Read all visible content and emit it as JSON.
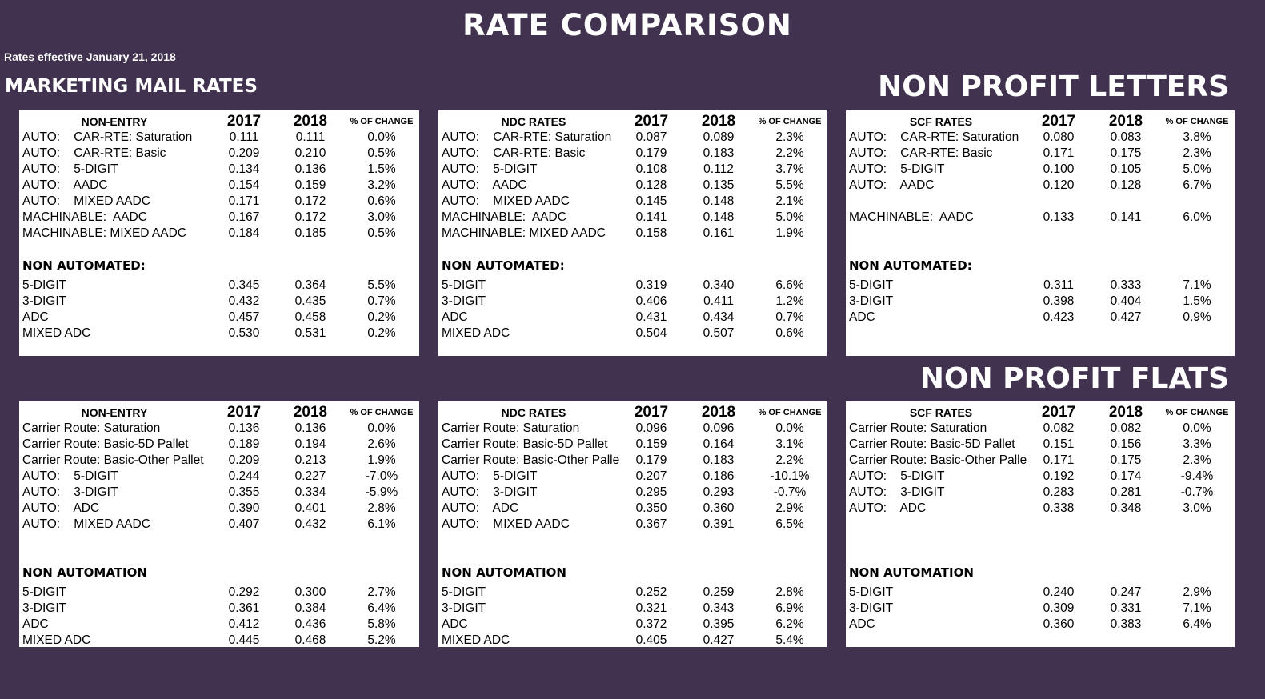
{
  "title": "RATE COMPARISON",
  "effective": "Rates effective January 21, 2018",
  "sections": {
    "marketing": "MARKETING MAIL RATES",
    "letters": "NON PROFIT LETTERS",
    "flats": "NON PROFIT FLATS"
  },
  "colors": {
    "background": "#41324f",
    "panel": "#ffffff",
    "heading": "#ffffff"
  },
  "columns": {
    "y2017": "2017",
    "y2018": "2018",
    "pct": "% OF CHANGE"
  },
  "tables": [
    {
      "heading": "NON-ENTRY",
      "rows": [
        {
          "label": "AUTO:    CAR-RTE: Saturation",
          "v17": "0.111",
          "v18": "0.111",
          "pct": "0.0%"
        },
        {
          "label": "AUTO:    CAR-RTE: Basic",
          "v17": "0.209",
          "v18": "0.210",
          "pct": "0.5%"
        },
        {
          "label": "AUTO:    5-DIGIT",
          "v17": "0.134",
          "v18": "0.136",
          "pct": "1.5%"
        },
        {
          "label": "AUTO:    AADC",
          "v17": "0.154",
          "v18": "0.159",
          "pct": "3.2%"
        },
        {
          "label": "AUTO:    MIXED AADC",
          "v17": "0.171",
          "v18": "0.172",
          "pct": "0.6%"
        },
        {
          "label": "MACHINABLE:  AADC",
          "v17": "0.167",
          "v18": "0.172",
          "pct": "3.0%"
        },
        {
          "label": "MACHINABLE: MIXED AADC",
          "v17": "0.184",
          "v18": "0.185",
          "pct": "0.5%"
        },
        {},
        {
          "section": "NON AUTOMATED:"
        },
        {
          "label": "5-DIGIT",
          "v17": "0.345",
          "v18": "0.364",
          "pct": "5.5%"
        },
        {
          "label": "3-DIGIT",
          "v17": "0.432",
          "v18": "0.435",
          "pct": "0.7%"
        },
        {
          "label": "ADC",
          "v17": "0.457",
          "v18": "0.458",
          "pct": "0.2%"
        },
        {
          "label": "MIXED ADC",
          "v17": "0.530",
          "v18": "0.531",
          "pct": "0.2%"
        }
      ]
    },
    {
      "heading": "NDC RATES",
      "rows": [
        {
          "label": "AUTO:    CAR-RTE: Saturation",
          "v17": "0.087",
          "v18": "0.089",
          "pct": "2.3%"
        },
        {
          "label": "AUTO:    CAR-RTE: Basic",
          "v17": "0.179",
          "v18": "0.183",
          "pct": "2.2%"
        },
        {
          "label": "AUTO:    5-DIGIT",
          "v17": "0.108",
          "v18": "0.112",
          "pct": "3.7%"
        },
        {
          "label": "AUTO:    AADC",
          "v17": "0.128",
          "v18": "0.135",
          "pct": "5.5%"
        },
        {
          "label": "AUTO:    MIXED AADC",
          "v17": "0.145",
          "v18": "0.148",
          "pct": "2.1%"
        },
        {
          "label": "MACHINABLE:  AADC",
          "v17": "0.141",
          "v18": "0.148",
          "pct": "5.0%"
        },
        {
          "label": "MACHINABLE: MIXED AADC",
          "v17": "0.158",
          "v18": "0.161",
          "pct": "1.9%"
        },
        {},
        {
          "section": "NON AUTOMATED:"
        },
        {
          "label": "5-DIGIT",
          "v17": "0.319",
          "v18": "0.340",
          "pct": "6.6%"
        },
        {
          "label": "3-DIGIT",
          "v17": "0.406",
          "v18": "0.411",
          "pct": "1.2%"
        },
        {
          "label": "ADC",
          "v17": "0.431",
          "v18": "0.434",
          "pct": "0.7%"
        },
        {
          "label": "MIXED ADC",
          "v17": "0.504",
          "v18": "0.507",
          "pct": "0.6%"
        }
      ]
    },
    {
      "heading": "SCF RATES",
      "rows": [
        {
          "label": "AUTO:    CAR-RTE: Saturation",
          "v17": "0.080",
          "v18": "0.083",
          "pct": "3.8%"
        },
        {
          "label": "AUTO:    CAR-RTE: Basic",
          "v17": "0.171",
          "v18": "0.175",
          "pct": "2.3%"
        },
        {
          "label": "AUTO:    5-DIGIT",
          "v17": "0.100",
          "v18": "0.105",
          "pct": "5.0%"
        },
        {
          "label": "AUTO:    AADC",
          "v17": "0.120",
          "v18": "0.128",
          "pct": "6.7%"
        },
        {},
        {
          "label": "MACHINABLE:  AADC",
          "v17": "0.133",
          "v18": "0.141",
          "pct": "6.0%"
        },
        {},
        {},
        {
          "section": "NON AUTOMATED:"
        },
        {
          "label": "5-DIGIT",
          "v17": "0.311",
          "v18": "0.333",
          "pct": "7.1%"
        },
        {
          "label": "3-DIGIT",
          "v17": "0.398",
          "v18": "0.404",
          "pct": "1.5%"
        },
        {
          "label": "ADC",
          "v17": "0.423",
          "v18": "0.427",
          "pct": "0.9%"
        }
      ]
    },
    {
      "heading": "NON-ENTRY",
      "rows": [
        {
          "label": "Carrier Route: Saturation",
          "v17": "0.136",
          "v18": "0.136",
          "pct": "0.0%"
        },
        {
          "label": "Carrier Route: Basic-5D Pallet",
          "v17": "0.189",
          "v18": "0.194",
          "pct": "2.6%"
        },
        {
          "label": "Carrier Route: Basic-Other Pallet",
          "v17": "0.209",
          "v18": "0.213",
          "pct": "1.9%"
        },
        {
          "label": "AUTO:    5-DIGIT",
          "v17": "0.244",
          "v18": "0.227",
          "pct": "-7.0%"
        },
        {
          "label": "AUTO:    3-DIGIT",
          "v17": "0.355",
          "v18": "0.334",
          "pct": "-5.9%"
        },
        {
          "label": "AUTO:    ADC",
          "v17": "0.390",
          "v18": "0.401",
          "pct": "2.8%"
        },
        {
          "label": "AUTO:    MIXED AADC",
          "v17": "0.407",
          "v18": "0.432",
          "pct": "6.1%"
        },
        {},
        {},
        {
          "section": "NON AUTOMATION"
        },
        {
          "label": "5-DIGIT",
          "v17": "0.292",
          "v18": "0.300",
          "pct": "2.7%"
        },
        {
          "label": "3-DIGIT",
          "v17": "0.361",
          "v18": "0.384",
          "pct": "6.4%"
        },
        {
          "label": "ADC",
          "v17": "0.412",
          "v18": "0.436",
          "pct": "5.8%"
        },
        {
          "label": "MIXED ADC",
          "v17": "0.445",
          "v18": "0.468",
          "pct": "5.2%"
        }
      ]
    },
    {
      "heading": "NDC RATES",
      "rows": [
        {
          "label": "Carrier Route: Saturation",
          "v17": "0.096",
          "v18": "0.096",
          "pct": "0.0%"
        },
        {
          "label": "Carrier Route: Basic-5D Pallet",
          "v17": "0.159",
          "v18": "0.164",
          "pct": "3.1%"
        },
        {
          "label": "Carrier Route: Basic-Other Palle",
          "v17": "0.179",
          "v18": "0.183",
          "pct": "2.2%"
        },
        {
          "label": "AUTO:    5-DIGIT",
          "v17": "0.207",
          "v18": "0.186",
          "pct": "-10.1%"
        },
        {
          "label": "AUTO:    3-DIGIT",
          "v17": "0.295",
          "v18": "0.293",
          "pct": "-0.7%"
        },
        {
          "label": "AUTO:    ADC",
          "v17": "0.350",
          "v18": "0.360",
          "pct": "2.9%"
        },
        {
          "label": "AUTO:    MIXED AADC",
          "v17": "0.367",
          "v18": "0.391",
          "pct": "6.5%"
        },
        {},
        {},
        {
          "section": "NON AUTOMATION"
        },
        {
          "label": "5-DIGIT",
          "v17": "0.252",
          "v18": "0.259",
          "pct": "2.8%"
        },
        {
          "label": "3-DIGIT",
          "v17": "0.321",
          "v18": "0.343",
          "pct": "6.9%"
        },
        {
          "label": "ADC",
          "v17": "0.372",
          "v18": "0.395",
          "pct": "6.2%"
        },
        {
          "label": "MIXED ADC",
          "v17": "0.405",
          "v18": "0.427",
          "pct": "5.4%"
        }
      ]
    },
    {
      "heading": "SCF RATES",
      "rows": [
        {
          "label": "Carrier Route: Saturation",
          "v17": "0.082",
          "v18": "0.082",
          "pct": "0.0%"
        },
        {
          "label": "Carrier Route: Basic-5D Pallet",
          "v17": "0.151",
          "v18": "0.156",
          "pct": "3.3%"
        },
        {
          "label": "Carrier Route: Basic-Other Palle",
          "v17": "0.171",
          "v18": "0.175",
          "pct": "2.3%"
        },
        {
          "label": "AUTO:    5-DIGIT",
          "v17": "0.192",
          "v18": "0.174",
          "pct": "-9.4%"
        },
        {
          "label": "AUTO:    3-DIGIT",
          "v17": "0.283",
          "v18": "0.281",
          "pct": "-0.7%"
        },
        {
          "label": "AUTO:    ADC",
          "v17": "0.338",
          "v18": "0.348",
          "pct": "3.0%"
        },
        {},
        {},
        {},
        {
          "section": "NON AUTOMATION"
        },
        {
          "label": "5-DIGIT",
          "v17": "0.240",
          "v18": "0.247",
          "pct": "2.9%"
        },
        {
          "label": "3-DIGIT",
          "v17": "0.309",
          "v18": "0.331",
          "pct": "7.1%"
        },
        {
          "label": "ADC",
          "v17": "0.360",
          "v18": "0.383",
          "pct": "6.4%"
        }
      ]
    }
  ]
}
